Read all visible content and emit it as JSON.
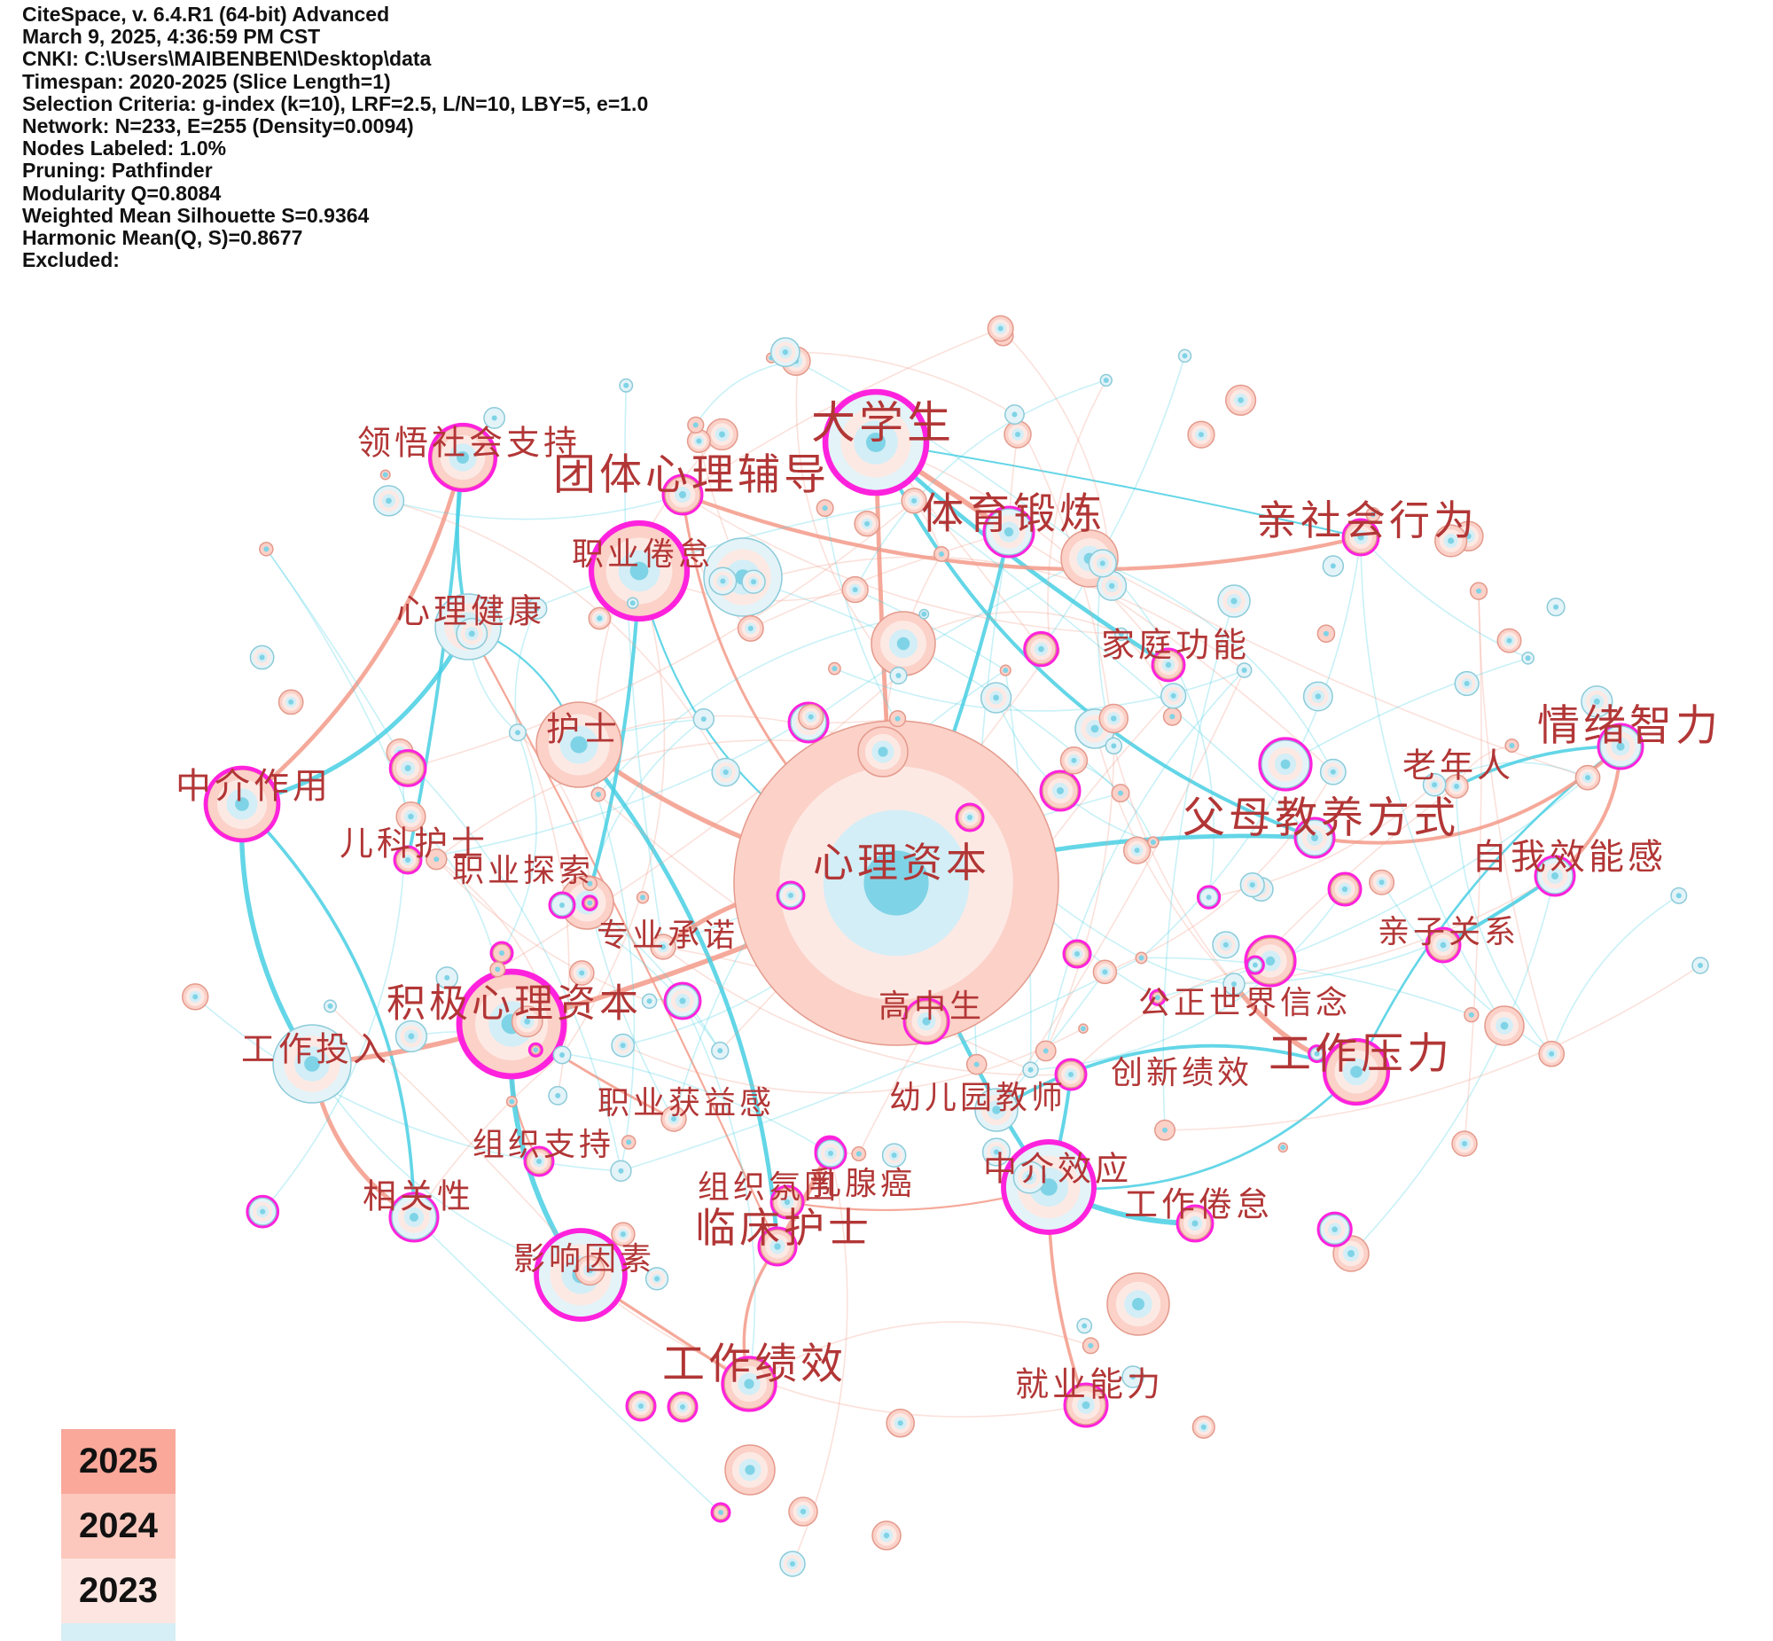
{
  "info": {
    "lines": [
      "CiteSpace, v. 6.4.R1 (64-bit) Advanced",
      "March 9, 2025, 4:36:59 PM CST",
      "CNKI: C:\\Users\\MAIBENBEN\\Desktop\\data",
      "Timespan: 2020-2025 (Slice Length=1)",
      "Selection Criteria: g-index (k=10), LRF=2.5, L/N=10, LBY=5, e=1.0",
      "Network: N=233, E=255 (Density=0.0094)",
      "Nodes Labeled: 1.0%",
      "Pruning: Pathfinder",
      "Modularity Q=0.8084",
      "Weighted Mean Silhouette S=0.9364",
      "Harmonic Mean(Q, S)=0.8677",
      "Excluded:"
    ]
  },
  "keywords": [
    "心理资本",
    "大学生",
    "团体心理辅导",
    "领悟社会支持",
    "体育锻炼",
    "亲社会行为",
    "职业倦怠",
    "心理健康",
    "家庭功能",
    "护士",
    "情绪智力",
    "老年人",
    "中介作用",
    "父母教养方式",
    "儿科护士",
    "职业探索",
    "自我效能感",
    "专业承诺",
    "亲子关系",
    "公正世界信念",
    "积极心理资本",
    "高中生",
    "工作投入",
    "工作压力",
    "创新绩效",
    "幼儿园教师",
    "职业获益感",
    "组织支持",
    "中介效应",
    "组织氛围",
    "乳腺癌",
    "相关性",
    "工作倦怠",
    "临床护士",
    "影响因素",
    "工作绩效",
    "就业能力"
  ],
  "legend": {
    "years": [
      {
        "label": "2025",
        "color": "#f9a89a"
      },
      {
        "label": "2024",
        "color": "#fcc8bd"
      },
      {
        "label": "2023",
        "color": "#fde6e1"
      },
      {
        "label": "",
        "color": "#d6eef5"
      }
    ]
  },
  "colors": {
    "label": "#b23636",
    "centrality_ring": "#ff22dd",
    "edge_early": "#48cfe3",
    "edge_recent": "#f39a88",
    "node_core": "#7fd3e6"
  }
}
